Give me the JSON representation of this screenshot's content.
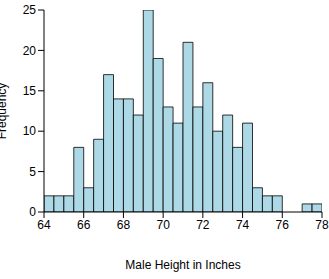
{
  "chart_data": {
    "type": "histogram",
    "x_label": "Male Height in Inches",
    "y_label": "Frequency",
    "bins": [
      64,
      64.5,
      65,
      65.5,
      66,
      66.5,
      67,
      67.5,
      68,
      68.5,
      69,
      69.5,
      70,
      70.5,
      71,
      71.5,
      72,
      72.5,
      73,
      73.5,
      74,
      74.5,
      75,
      75.5,
      76,
      76.5,
      77,
      77.5,
      78
    ],
    "values": [
      2,
      2,
      2,
      8,
      3,
      9,
      17,
      14,
      14,
      12,
      25,
      19,
      13,
      11,
      21,
      13,
      16,
      10,
      12,
      8,
      11,
      3,
      2,
      2,
      0,
      0,
      1,
      1
    ],
    "color": "#add8e6",
    "xlim": [
      64,
      78
    ],
    "xticks": [
      64,
      66,
      68,
      70,
      72,
      74,
      76,
      78
    ],
    "ylim": [
      0,
      25
    ],
    "yticks": [
      0,
      5,
      10,
      15,
      20,
      25
    ],
    "grid": false
  }
}
